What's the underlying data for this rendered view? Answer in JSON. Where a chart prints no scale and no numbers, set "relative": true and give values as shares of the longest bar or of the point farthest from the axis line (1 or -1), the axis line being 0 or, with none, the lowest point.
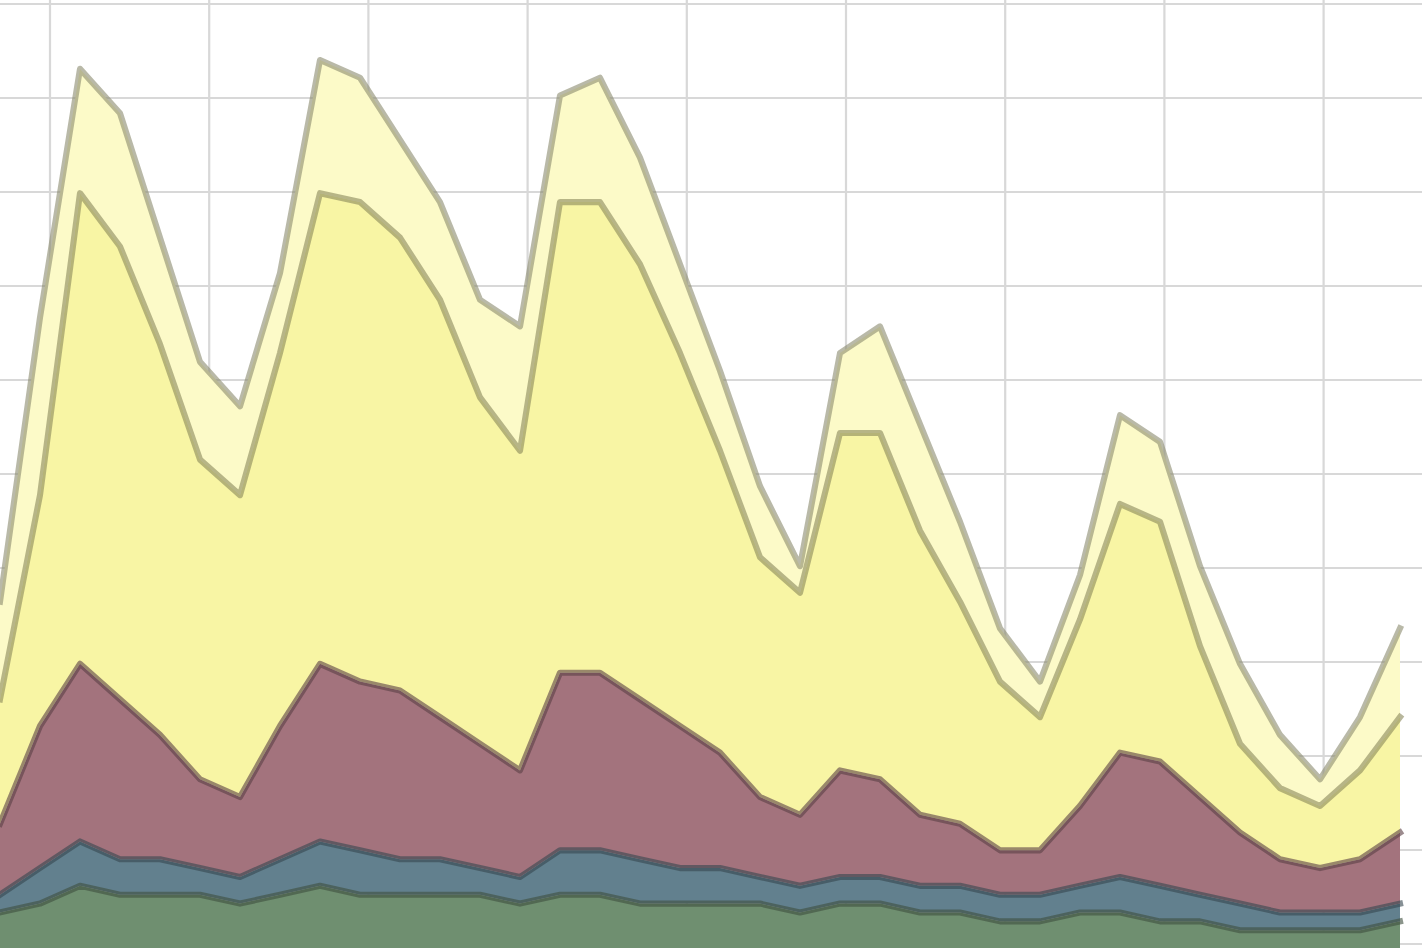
{
  "chart_data": {
    "type": "area",
    "stacked": true,
    "relative": true,
    "grid": true,
    "categories": [
      null,
      null,
      null,
      null,
      null,
      null,
      null,
      null,
      null,
      null,
      null,
      null,
      null,
      null,
      null,
      null,
      null,
      null,
      null,
      null,
      null,
      null,
      null,
      null,
      null,
      null,
      null,
      null,
      null,
      null,
      null,
      null,
      null,
      null,
      null,
      null
    ],
    "series": [
      {
        "color": "#6f8f70",
        "values": [
          0.04,
          0.05,
          0.07,
          0.06,
          0.06,
          0.06,
          0.05,
          0.06,
          0.07,
          0.06,
          0.06,
          0.06,
          0.06,
          0.05,
          0.06,
          0.06,
          0.05,
          0.05,
          0.05,
          0.05,
          0.04,
          0.05,
          0.05,
          0.04,
          0.04,
          0.03,
          0.03,
          0.04,
          0.04,
          0.03,
          0.03,
          0.02,
          0.02,
          0.02,
          0.02,
          0.03
        ]
      },
      {
        "color": "#62808e",
        "values": [
          0.02,
          0.04,
          0.05,
          0.04,
          0.04,
          0.03,
          0.03,
          0.04,
          0.05,
          0.05,
          0.04,
          0.04,
          0.03,
          0.03,
          0.05,
          0.05,
          0.05,
          0.04,
          0.04,
          0.03,
          0.03,
          0.03,
          0.03,
          0.03,
          0.03,
          0.03,
          0.03,
          0.03,
          0.04,
          0.04,
          0.03,
          0.03,
          0.02,
          0.02,
          0.02,
          0.02
        ]
      },
      {
        "color": "#a3737d",
        "values": [
          0.08,
          0.16,
          0.2,
          0.18,
          0.14,
          0.1,
          0.09,
          0.15,
          0.2,
          0.19,
          0.19,
          0.16,
          0.14,
          0.12,
          0.2,
          0.2,
          0.18,
          0.16,
          0.13,
          0.09,
          0.08,
          0.12,
          0.11,
          0.08,
          0.07,
          0.05,
          0.05,
          0.09,
          0.14,
          0.14,
          0.11,
          0.08,
          0.06,
          0.05,
          0.06,
          0.08
        ]
      },
      {
        "color": "#f8f5a4",
        "values": [
          0.14,
          0.26,
          0.53,
          0.51,
          0.44,
          0.36,
          0.34,
          0.42,
          0.53,
          0.54,
          0.51,
          0.47,
          0.39,
          0.36,
          0.53,
          0.53,
          0.49,
          0.42,
          0.34,
          0.27,
          0.25,
          0.38,
          0.39,
          0.32,
          0.25,
          0.19,
          0.15,
          0.21,
          0.28,
          0.27,
          0.17,
          0.1,
          0.08,
          0.07,
          0.1,
          0.13
        ]
      },
      {
        "color": "#fcfac8",
        "values": [
          0.11,
          0.2,
          0.14,
          0.15,
          0.12,
          0.11,
          0.1,
          0.09,
          0.15,
          0.14,
          0.11,
          0.11,
          0.11,
          0.14,
          0.12,
          0.14,
          0.12,
          0.1,
          0.09,
          0.08,
          0.03,
          0.09,
          0.12,
          0.12,
          0.09,
          0.06,
          0.04,
          0.05,
          0.1,
          0.09,
          0.09,
          0.09,
          0.06,
          0.03,
          0.06,
          0.1
        ]
      }
    ]
  }
}
